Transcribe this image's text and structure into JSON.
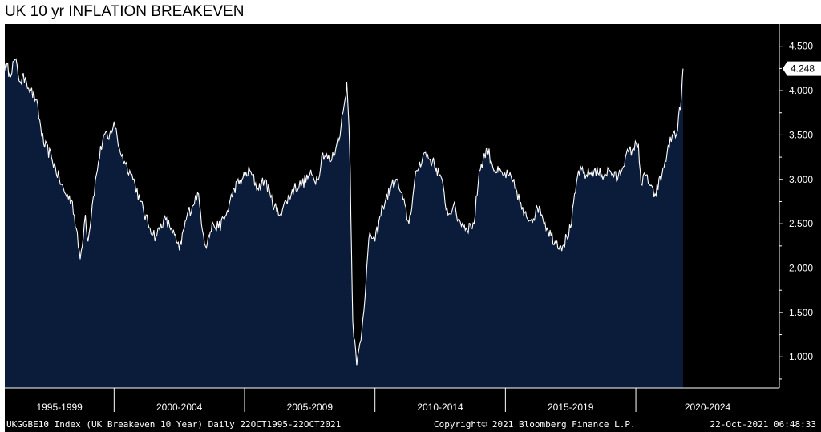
{
  "chart_data": {
    "type": "area",
    "title": "UK 10 yr INFLATION BREAKEVEN",
    "x_period_labels": [
      "1995-1999",
      "2000-2004",
      "2005-2009",
      "2010-2014",
      "2015-2019",
      "2020-2024"
    ],
    "y_tick_labels": [
      "1.000",
      "1.500",
      "2.000",
      "2.500",
      "3.000",
      "3.500",
      "4.000",
      "4.500"
    ],
    "y_tick_values": [
      1.0,
      1.5,
      2.0,
      2.5,
      3.0,
      3.5,
      4.0,
      4.5
    ],
    "ylim": [
      0.65,
      4.75
    ],
    "xlim": [
      1995.81,
      2025.5
    ],
    "last_value_label": "4.248",
    "last_value": 4.248,
    "footer_left": "UKGGBE10 Index (UK Breakeven 10 Year)  Daily 22OCT1995-22OCT2021",
    "footer_center": "Copyright© 2021 Bloomberg Finance L.P.",
    "footer_right": "22-Oct-2021 06:48:33",
    "colors": {
      "background": "#000000",
      "area_fill": "#0b1c3a",
      "line": "#ffffff",
      "frame": "#ffffff",
      "last_value_box": "#ffffff"
    },
    "grid": false,
    "series": [
      {
        "x": [
          1995.81,
          1996.0,
          1996.2,
          1996.4,
          1996.6,
          1996.8,
          1997.0,
          1997.3,
          1997.6,
          1997.9,
          1998.1,
          1998.4,
          1998.7,
          1998.9,
          1999.0,
          1999.2,
          1999.4,
          1999.6,
          1999.8,
          2000.0,
          2000.2,
          2000.4,
          2000.6,
          2000.8,
          2001.0,
          2001.3,
          2001.6,
          2001.9,
          2002.2,
          2002.5,
          2002.8,
          2003.0,
          2003.2,
          2003.5,
          2003.8,
          2004.0,
          2004.3,
          2004.6,
          2004.9,
          2005.2,
          2005.5,
          2005.8,
          2006.0,
          2006.3,
          2006.6,
          2006.9,
          2007.2,
          2007.5,
          2007.8,
          2008.0,
          2008.3,
          2008.5,
          2008.7,
          2008.85,
          2008.92,
          2009.0,
          2009.05,
          2009.1,
          2009.15,
          2009.3,
          2009.5,
          2009.8,
          2010.0,
          2010.3,
          2010.6,
          2010.8,
          2011.0,
          2011.3,
          2011.6,
          2011.9,
          2012.2,
          2012.5,
          2012.8,
          2013.0,
          2013.2,
          2013.5,
          2013.8,
          2014.0,
          2014.3,
          2014.6,
          2014.9,
          2015.1,
          2015.4,
          2015.7,
          2016.0,
          2016.3,
          2016.4,
          2016.6,
          2016.9,
          2017.2,
          2017.5,
          2017.8,
          2018.1,
          2018.4,
          2018.7,
          2019.0,
          2019.3,
          2019.6,
          2019.9,
          2020.1,
          2020.2,
          2020.4,
          2020.7,
          2021.0,
          2021.2,
          2021.4,
          2021.6,
          2021.75,
          2021.81
        ],
        "y": [
          4.3,
          4.2,
          4.35,
          4.1,
          4.15,
          4.0,
          3.9,
          3.4,
          3.25,
          3.0,
          2.85,
          2.75,
          2.1,
          2.6,
          2.3,
          2.8,
          3.2,
          3.5,
          3.45,
          3.65,
          3.35,
          3.2,
          3.1,
          2.95,
          2.75,
          2.5,
          2.35,
          2.55,
          2.45,
          2.2,
          2.6,
          2.7,
          2.85,
          2.25,
          2.5,
          2.45,
          2.6,
          2.9,
          3.0,
          3.1,
          2.9,
          3.0,
          2.8,
          2.6,
          2.75,
          2.9,
          2.95,
          3.05,
          3.0,
          3.3,
          3.2,
          3.35,
          3.6,
          3.9,
          4.1,
          3.6,
          3.1,
          2.2,
          1.4,
          0.9,
          1.3,
          2.4,
          2.3,
          2.7,
          2.9,
          3.0,
          2.85,
          2.5,
          3.1,
          3.3,
          3.2,
          3.05,
          2.6,
          2.7,
          2.55,
          2.45,
          2.5,
          3.1,
          3.35,
          3.1,
          3.05,
          3.05,
          2.9,
          2.6,
          2.55,
          2.7,
          2.6,
          2.45,
          2.3,
          2.25,
          2.45,
          3.1,
          3.05,
          3.1,
          3.05,
          3.1,
          3.0,
          3.25,
          3.35,
          3.4,
          2.95,
          3.05,
          2.8,
          3.05,
          3.3,
          3.5,
          3.55,
          3.95,
          4.248
        ]
      }
    ]
  }
}
